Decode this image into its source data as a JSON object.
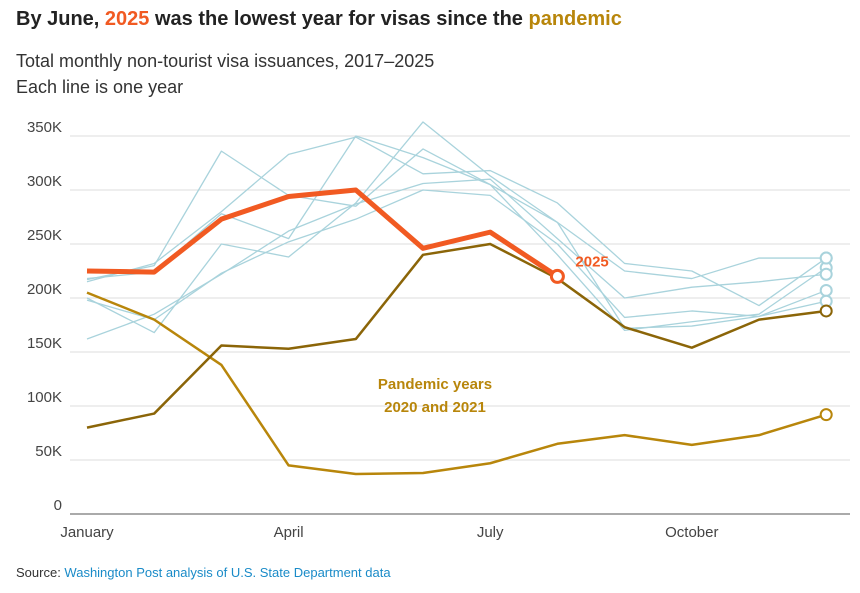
{
  "chart_data": {
    "type": "line",
    "title": [
      "By June, ",
      "2025",
      " was the lowest year for visas since the ",
      "pandemic"
    ],
    "subtitle": [
      "Total monthly non-tourist visa issuances, 2017–2025",
      "Each line is one year"
    ],
    "categories": [
      "January",
      null,
      null,
      "April",
      null,
      null,
      "July",
      null,
      null,
      "October",
      null,
      null
    ],
    "ylim": [
      0,
      350000
    ],
    "yticks": [
      0,
      {
        "value": 50000,
        "label": "50K"
      },
      {
        "value": 100000,
        "label": "100K"
      },
      {
        "value": 150000,
        "label": "150K"
      },
      {
        "value": 200000,
        "label": "200K"
      },
      {
        "value": 250000,
        "label": "250K"
      },
      {
        "value": 300000,
        "label": "300K"
      },
      {
        "value": 350000,
        "label": "350K"
      }
    ],
    "grid": true,
    "series": [
      {
        "color": "#a9d3dc",
        "values": [
          217000,
          230000,
          336000,
          295000,
          285000,
          338000,
          305000,
          240000,
          170000,
          178000,
          185000,
          228000
        ]
      },
      {
        "color": "#a9d3dc",
        "values": [
          215000,
          232000,
          280000,
          333000,
          349000,
          315000,
          318000,
          288000,
          232000,
          225000,
          193000,
          237000
        ]
      },
      {
        "color": "#a9d3dc",
        "values": [
          162000,
          185000,
          222000,
          262000,
          287000,
          306000,
          310000,
          255000,
          200000,
          210000,
          215000,
          222000
        ]
      },
      {
        "color": "#a9d3dc",
        "values": [
          200000,
          168000,
          250000,
          238000,
          288000,
          363000,
          313000,
          270000,
          225000,
          218000,
          237000,
          237000
        ]
      },
      {
        "color": "#a9d3dc",
        "values": [
          198000,
          180000,
          223000,
          252000,
          273000,
          300000,
          295000,
          250000,
          182000,
          188000,
          183000,
          207000
        ]
      },
      {
        "color": "#a9d3dc",
        "values": [
          218000,
          224000,
          278000,
          255000,
          350000,
          330000,
          305000,
          270000,
          172000,
          174000,
          183000,
          197000
        ]
      },
      {
        "color": "#b8860b",
        "values": [
          205000,
          180000,
          138000,
          45000,
          37000,
          38000,
          47000,
          65000,
          73000,
          64000,
          73000,
          92000
        ]
      },
      {
        "color": "#8b6508",
        "values": [
          80000,
          93000,
          156000,
          153000,
          162000,
          240000,
          250000,
          218000,
          173000,
          154000,
          180000,
          188000
        ]
      },
      {
        "name": "2025",
        "color": "#f15a22",
        "values": [
          225000,
          224000,
          273000,
          294000,
          300000,
          246000,
          261000,
          220000,
          null,
          null,
          null,
          null
        ]
      }
    ],
    "annotation": [
      "Pandemic years",
      "2020 and 2021"
    ],
    "source": {
      "label": "Source: ",
      "text": "Washington Post analysis of U.S. State Department data"
    }
  }
}
